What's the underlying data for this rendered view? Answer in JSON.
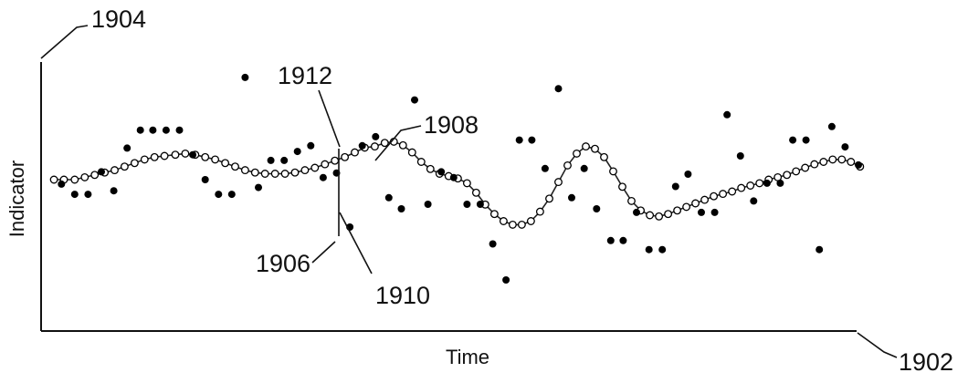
{
  "chart_data": {
    "type": "scatter",
    "title": "",
    "xlabel": "Time",
    "ylabel": "Indicator",
    "grid": false,
    "legend": "none",
    "xlim": [
      0,
      100
    ],
    "ylim": [
      0,
      100
    ],
    "reference_numerals": {
      "y_axis": "1904",
      "x_axis": "1902",
      "raw_point": "1906",
      "smoothed_curve": "1908",
      "smoothed_point": "1910",
      "peak": "1912"
    },
    "series": [
      {
        "marker": "filled-circle",
        "color": "#000000",
        "points": [
          [
            1.9,
            53.1
          ],
          [
            3.5,
            48.8
          ],
          [
            5.1,
            48.8
          ],
          [
            6.7,
            58.3
          ],
          [
            8.2,
            50.3
          ],
          [
            9.8,
            68.3
          ],
          [
            11.4,
            75.9
          ],
          [
            12.9,
            75.9
          ],
          [
            14.5,
            75.9
          ],
          [
            16.1,
            75.9
          ],
          [
            17.7,
            65.5
          ],
          [
            19.2,
            55.0
          ],
          [
            20.8,
            48.8
          ],
          [
            22.4,
            48.8
          ],
          [
            24.0,
            98.1
          ],
          [
            25.6,
            51.7
          ],
          [
            27.1,
            63.1
          ],
          [
            28.7,
            63.1
          ],
          [
            30.3,
            66.9
          ],
          [
            31.9,
            69.3
          ],
          [
            33.4,
            55.9
          ],
          [
            35.0,
            57.8
          ],
          [
            36.6,
            35.0
          ],
          [
            38.1,
            69.3
          ],
          [
            39.7,
            73.1
          ],
          [
            41.3,
            47.4
          ],
          [
            42.8,
            42.7
          ],
          [
            44.4,
            88.6
          ],
          [
            46.0,
            44.6
          ],
          [
            47.6,
            58.3
          ],
          [
            49.1,
            55.9
          ],
          [
            50.7,
            44.6
          ],
          [
            52.3,
            44.6
          ],
          [
            53.8,
            27.9
          ],
          [
            55.4,
            12.7
          ],
          [
            57.0,
            71.7
          ],
          [
            58.5,
            71.7
          ],
          [
            60.1,
            59.7
          ],
          [
            61.7,
            93.4
          ],
          [
            63.3,
            47.4
          ],
          [
            64.8,
            59.7
          ],
          [
            66.3,
            42.7
          ],
          [
            68.0,
            29.3
          ],
          [
            69.5,
            29.3
          ],
          [
            71.1,
            41.2
          ],
          [
            72.6,
            25.5
          ],
          [
            74.2,
            25.5
          ],
          [
            75.8,
            52.1
          ],
          [
            77.3,
            57.3
          ],
          [
            78.9,
            41.2
          ],
          [
            80.5,
            41.2
          ],
          [
            82.0,
            82.4
          ],
          [
            83.6,
            65.0
          ],
          [
            85.2,
            46.0
          ],
          [
            86.8,
            53.5
          ],
          [
            88.4,
            53.5
          ],
          [
            89.9,
            71.7
          ],
          [
            91.5,
            71.7
          ],
          [
            93.1,
            25.5
          ],
          [
            94.6,
            77.4
          ],
          [
            96.2,
            68.8
          ],
          [
            97.8,
            61.2
          ]
        ]
      },
      {
        "marker": "open-circle",
        "color": "#000000",
        "points": [
          [
            1.0,
            55.0
          ],
          [
            2.2,
            55.0
          ],
          [
            3.5,
            55.0
          ],
          [
            4.7,
            56.0
          ],
          [
            5.9,
            57.0
          ],
          [
            7.1,
            58.0
          ],
          [
            8.3,
            59.0
          ],
          [
            9.5,
            60.5
          ],
          [
            10.7,
            62.0
          ],
          [
            11.9,
            63.5
          ],
          [
            13.1,
            64.5
          ],
          [
            14.3,
            65.0
          ],
          [
            15.6,
            65.5
          ],
          [
            16.8,
            66.0
          ],
          [
            18.0,
            65.5
          ],
          [
            19.2,
            64.5
          ],
          [
            20.4,
            63.5
          ],
          [
            21.6,
            62.0
          ],
          [
            22.8,
            60.5
          ],
          [
            24.0,
            59.0
          ],
          [
            25.2,
            58.0
          ],
          [
            26.4,
            57.5
          ],
          [
            27.6,
            57.5
          ],
          [
            28.8,
            57.5
          ],
          [
            30.0,
            58.0
          ],
          [
            31.2,
            59.0
          ],
          [
            32.4,
            60.0
          ],
          [
            33.6,
            61.5
          ],
          [
            34.8,
            63.0
          ],
          [
            36.0,
            64.5
          ],
          [
            37.2,
            66.5
          ],
          [
            38.4,
            68.5
          ],
          [
            39.6,
            69.0
          ],
          [
            40.8,
            70.5
          ],
          [
            41.9,
            71.0
          ],
          [
            43.0,
            69.5
          ],
          [
            44.1,
            66.5
          ],
          [
            45.2,
            62.5
          ],
          [
            46.3,
            59.5
          ],
          [
            47.4,
            57.5
          ],
          [
            48.5,
            56.5
          ],
          [
            49.6,
            55.5
          ],
          [
            50.7,
            53.5
          ],
          [
            51.8,
            49.5
          ],
          [
            52.9,
            44.5
          ],
          [
            54.0,
            40.5
          ],
          [
            55.1,
            37.5
          ],
          [
            56.2,
            36.0
          ],
          [
            57.3,
            36.0
          ],
          [
            58.4,
            37.5
          ],
          [
            59.5,
            41.5
          ],
          [
            60.6,
            47.0
          ],
          [
            61.7,
            54.0
          ],
          [
            62.8,
            61.0
          ],
          [
            63.9,
            66.0
          ],
          [
            65.0,
            69.0
          ],
          [
            66.1,
            68.0
          ],
          [
            67.2,
            64.5
          ],
          [
            68.3,
            58.5
          ],
          [
            69.4,
            52.0
          ],
          [
            70.5,
            46.0
          ],
          [
            71.6,
            42.0
          ],
          [
            72.7,
            40.0
          ],
          [
            73.8,
            39.5
          ],
          [
            74.9,
            40.5
          ],
          [
            76.0,
            42.0
          ],
          [
            77.1,
            43.5
          ],
          [
            78.2,
            45.0
          ],
          [
            79.3,
            46.5
          ],
          [
            80.4,
            48.0
          ],
          [
            81.5,
            49.0
          ],
          [
            82.6,
            50.0
          ],
          [
            83.7,
            51.5
          ],
          [
            84.8,
            52.5
          ],
          [
            85.9,
            53.5
          ],
          [
            87.0,
            55.0
          ],
          [
            88.1,
            56.0
          ],
          [
            89.2,
            57.0
          ],
          [
            90.3,
            58.5
          ],
          [
            91.4,
            60.0
          ],
          [
            92.5,
            61.5
          ],
          [
            93.6,
            62.5
          ],
          [
            94.7,
            63.5
          ],
          [
            95.8,
            63.5
          ],
          [
            96.9,
            62.5
          ],
          [
            98.0,
            60.5
          ]
        ]
      }
    ]
  }
}
